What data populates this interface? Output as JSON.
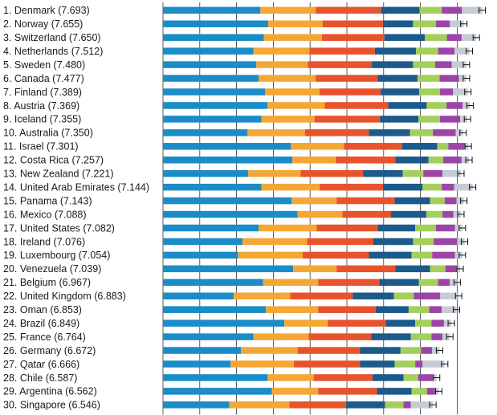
{
  "chart_data": {
    "type": "bar",
    "stacked": true,
    "orientation": "horizontal",
    "title": "",
    "xlabel": "",
    "ylabel": "",
    "xlim": [
      0,
      8
    ],
    "grid": true,
    "legend": "none",
    "colors": [
      "#1a8cc8",
      "#f4a734",
      "#e8532b",
      "#1b5a8a",
      "#a3cf5a",
      "#9b45a8",
      "#c4ccd4"
    ],
    "categories": [
      "1. Denmark (7.693)",
      "2. Norway (7.655)",
      "3. Switzerland (7.650)",
      "4. Netherlands (7.512)",
      "5. Sweden (7.480)",
      "6. Canada (7.477)",
      "7. Finland (7.389)",
      "8. Austria (7.369)",
      "9. Iceland (7.355)",
      "10. Australia (7.350)",
      "11. Israel (7.301)",
      "12. Costa Rica (7.257)",
      "13. New Zealand (7.221)",
      "14. United Arab Emirates (7.144)",
      "15. Panama (7.143)",
      "16. Mexico (7.088)",
      "17. United States (7.082)",
      "18. Ireland (7.076)",
      "19. Luxembourg (7.054)",
      "20. Venezuela (7.039)",
      "21. Belgium (6.967)",
      "22. United Kingdom (6.883)",
      "23. Oman (6.853)",
      "24. Brazil (6.849)",
      "25. France (6.764)",
      "26. Germany (6.672)",
      "27. Qatar (6.666)",
      "28. Chile (6.587)",
      "29. Argentina (6.562)",
      "30. Singapore (6.546)"
    ],
    "segments": [
      [
        2.65,
        1.5,
        1.78,
        1.05,
        0.6,
        0.55,
        0.55
      ],
      [
        2.86,
        1.48,
        1.64,
        0.82,
        0.62,
        0.38,
        0.38
      ],
      [
        2.74,
        1.58,
        1.7,
        1.1,
        0.6,
        0.4,
        0.4
      ],
      [
        2.46,
        1.52,
        1.78,
        1.12,
        0.6,
        0.45,
        0.4
      ],
      [
        2.54,
        1.4,
        1.74,
        1.12,
        0.6,
        0.45,
        0.4
      ],
      [
        2.6,
        1.55,
        1.69,
        1.08,
        0.6,
        0.53,
        0.2
      ],
      [
        2.78,
        1.48,
        1.66,
        1.05,
        0.56,
        0.36,
        0.4
      ],
      [
        2.84,
        1.56,
        1.72,
        1.05,
        0.54,
        0.44,
        0.2
      ],
      [
        2.68,
        1.44,
        1.78,
        1.05,
        0.58,
        0.55,
        0.2
      ],
      [
        2.3,
        1.56,
        1.74,
        1.12,
        0.62,
        0.62,
        0.2
      ],
      [
        3.48,
        1.44,
        1.58,
        0.96,
        0.3,
        0.44,
        0.1
      ],
      [
        3.52,
        1.18,
        1.62,
        0.9,
        0.4,
        0.5,
        0.2
      ],
      [
        2.32,
        1.42,
        1.7,
        1.08,
        0.56,
        0.52,
        0.5
      ],
      [
        2.68,
        1.58,
        1.72,
        1.08,
        0.52,
        0.34,
        0.5
      ],
      [
        3.5,
        1.22,
        1.58,
        0.96,
        0.4,
        0.32,
        0.2
      ],
      [
        3.66,
        1.22,
        1.32,
        0.96,
        0.44,
        0.3,
        0.2
      ],
      [
        2.6,
        1.58,
        1.66,
        1.02,
        0.56,
        0.52,
        0.2
      ],
      [
        2.16,
        1.76,
        1.8,
        1.08,
        0.56,
        0.64,
        0.2
      ],
      [
        2.04,
        1.76,
        1.8,
        1.16,
        0.56,
        0.62,
        0.2
      ],
      [
        3.54,
        1.18,
        1.6,
        0.94,
        0.42,
        0.3,
        0.1
      ],
      [
        2.72,
        1.5,
        1.66,
        1.08,
        0.52,
        0.32,
        0.2
      ],
      [
        1.92,
        1.54,
        1.7,
        1.12,
        0.54,
        0.72,
        0.5
      ],
      [
        2.8,
        1.42,
        1.56,
        0.9,
        0.56,
        0.34,
        0.4
      ],
      [
        3.3,
        1.18,
        1.58,
        0.8,
        0.44,
        0.34,
        0.2
      ],
      [
        2.46,
        1.5,
        1.7,
        1.08,
        0.56,
        0.3,
        0.2
      ],
      [
        2.12,
        1.54,
        1.7,
        1.1,
        0.56,
        0.3,
        0.2
      ],
      [
        1.84,
        1.72,
        1.8,
        0.94,
        0.56,
        0.2,
        0.6
      ],
      [
        2.84,
        1.26,
        1.6,
        0.84,
        0.4,
        0.4,
        0.1
      ],
      [
        2.96,
        1.26,
        1.6,
        0.94,
        0.42,
        0.22,
        0.1
      ],
      [
        1.8,
        1.64,
        1.54,
        1.06,
        0.5,
        0.2,
        0.6
      ]
    ]
  }
}
